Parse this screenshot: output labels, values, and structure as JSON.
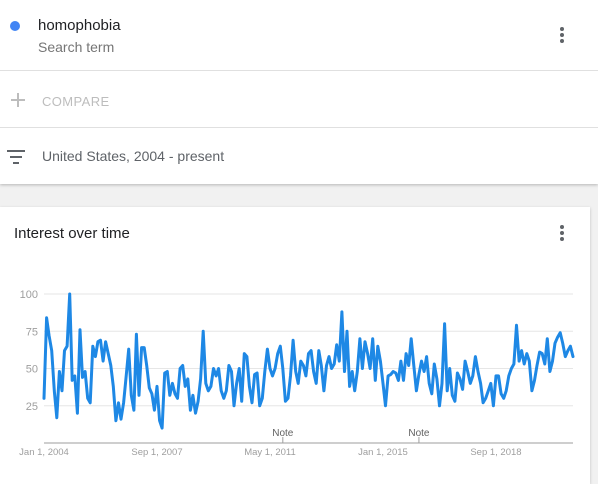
{
  "search_term": {
    "name": "homophobia",
    "subtitle": "Search term",
    "color": "#4285f4"
  },
  "compare": {
    "label": "COMPARE",
    "icon": "plus-icon"
  },
  "filter": {
    "label": "United States, 2004 - present",
    "icon": "filter-icon"
  },
  "chart_card": {
    "title": "Interest over time",
    "menu_icon": "more-vert-icon"
  },
  "chart_data": {
    "type": "line",
    "title": "",
    "xlabel": "",
    "ylabel": "",
    "ylim": [
      0,
      100
    ],
    "y_ticks": [
      25,
      50,
      75,
      100
    ],
    "x_tick_labels": [
      {
        "label": "Jan 1, 2004",
        "x": 0
      },
      {
        "label": "Sep 1, 2007",
        "x": 44
      },
      {
        "label": "May 1, 2011",
        "x": 88
      },
      {
        "label": "Jan 1, 2015",
        "x": 132
      },
      {
        "label": "Sep 1, 2018",
        "x": 176
      }
    ],
    "annotations": [
      {
        "label": "Note",
        "x": 93
      },
      {
        "label": "Note",
        "x": 146
      }
    ],
    "grid": true,
    "series": [
      {
        "color": "#1e88e5",
        "x_start": "2004-01",
        "x_interval": "month",
        "values": [
          30,
          84,
          72,
          62,
          35,
          17,
          48,
          35,
          62,
          65,
          100,
          42,
          45,
          20,
          76,
          44,
          48,
          30,
          27,
          65,
          58,
          68,
          69,
          55,
          68,
          60,
          52,
          38,
          15,
          27,
          16,
          27,
          45,
          63,
          32,
          22,
          73,
          32,
          64,
          64,
          52,
          37,
          33,
          22,
          38,
          15,
          10,
          47,
          48,
          32,
          40,
          33,
          30,
          50,
          52,
          38,
          43,
          22,
          32,
          20,
          28,
          43,
          75,
          40,
          35,
          38,
          50,
          45,
          50,
          35,
          30,
          35,
          52,
          48,
          25,
          40,
          50,
          28,
          60,
          58,
          38,
          27,
          46,
          47,
          25,
          30,
          48,
          63,
          50,
          45,
          50,
          60,
          65,
          50,
          28,
          30,
          45,
          69,
          48,
          40,
          55,
          52,
          45,
          60,
          62,
          48,
          40,
          62,
          52,
          35,
          52,
          58,
          50,
          53,
          66,
          55,
          88,
          48,
          75,
          38,
          48,
          35,
          48,
          70,
          50,
          68,
          60,
          50,
          70,
          42,
          65,
          55,
          40,
          25,
          45,
          46,
          48,
          47,
          42,
          55,
          42,
          60,
          52,
          70,
          52,
          35,
          46,
          55,
          48,
          58,
          40,
          33,
          53,
          43,
          25,
          40,
          80,
          35,
          50,
          32,
          28,
          47,
          43,
          36,
          55,
          48,
          40,
          45,
          58,
          48,
          40,
          27,
          30,
          35,
          40,
          25,
          45,
          45,
          33,
          30,
          35,
          45,
          50,
          53,
          79,
          55,
          62,
          53,
          60,
          55,
          35,
          42,
          52,
          61,
          60,
          53,
          70,
          48,
          55,
          67,
          71,
          74,
          67,
          58,
          62,
          65,
          58
        ]
      }
    ]
  }
}
